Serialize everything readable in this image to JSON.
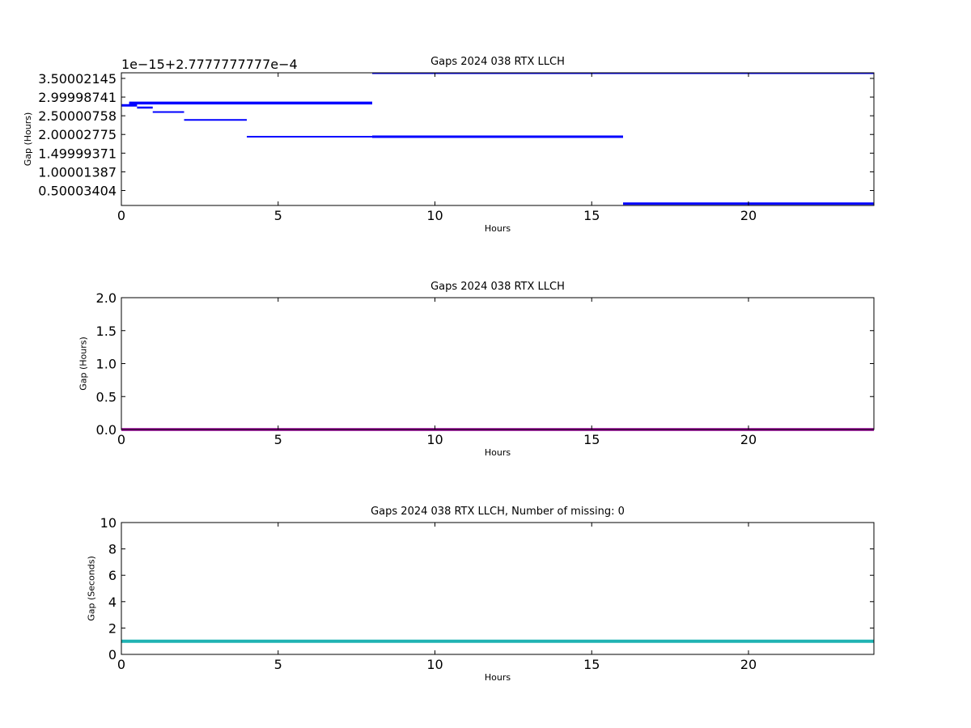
{
  "chart_data": [
    {
      "type": "line",
      "title": "Gaps 2024 038 RTX  LLCH",
      "xlabel": "Hours",
      "ylabel": "Gap (Hours)",
      "offset_text": "1e−15+2.7777777777e−4",
      "xlim": [
        0,
        24
      ],
      "ylim": [
        0.1,
        3.65
      ],
      "xticks": [
        0,
        5,
        10,
        15,
        20
      ],
      "xtick_labels": [
        "0",
        "5",
        "10",
        "15",
        "20"
      ],
      "yticks": [
        0.50003404,
        1.00001387,
        1.49999371,
        2.00002775,
        2.50000758,
        2.99998741,
        3.50002145
      ],
      "ytick_labels": [
        "0.50003404",
        "1.00001387",
        "1.49999371",
        "2.00002775",
        "2.50000758",
        "2.99998741",
        "3.50002145"
      ],
      "grid": false,
      "color": "#0000ff",
      "segments": [
        {
          "x": [
            0,
            0.5
          ],
          "y": 2.78,
          "width": 3
        },
        {
          "x": [
            0.25,
            0.5
          ],
          "y": 2.83,
          "width": 3
        },
        {
          "x": [
            0.5,
            1.0
          ],
          "y": 2.72,
          "width": 2.5
        },
        {
          "x": [
            1.0,
            2.0
          ],
          "y": 2.6,
          "width": 2
        },
        {
          "x": [
            2.0,
            4.0
          ],
          "y": 2.39,
          "width": 2
        },
        {
          "x": [
            4.0,
            8.0
          ],
          "y": 1.94,
          "width": 2
        },
        {
          "x": [
            0.25,
            8.0
          ],
          "y": 2.84,
          "width": 3.5
        },
        {
          "x": [
            8.0,
            16.0
          ],
          "y": 1.94,
          "width": 3
        },
        {
          "x": [
            8.0,
            24.0
          ],
          "y": 3.64,
          "width": 2
        },
        {
          "x": [
            16.0,
            24.0
          ],
          "y": 0.15,
          "width": 3
        }
      ]
    },
    {
      "type": "line",
      "title": "Gaps 2024 038 RTX  LLCH",
      "xlabel": "Hours",
      "ylabel": "Gap (Hours)",
      "xlim": [
        0,
        24
      ],
      "ylim": [
        0,
        2.0
      ],
      "xticks": [
        0,
        5,
        10,
        15,
        20
      ],
      "xtick_labels": [
        "0",
        "5",
        "10",
        "15",
        "20"
      ],
      "yticks": [
        0,
        0.5,
        1.0,
        1.5,
        2.0
      ],
      "ytick_labels": [
        "0.0",
        "0.5",
        "1.0",
        "1.5",
        "2.0"
      ],
      "grid": false,
      "color": "#990099",
      "segments": [
        {
          "x": [
            0,
            24
          ],
          "y": 0.0,
          "width": 3.5
        }
      ]
    },
    {
      "type": "line",
      "title": "Gaps 2024 038 RTX  LLCH, Number of missing: 0",
      "xlabel": "Hours",
      "ylabel": "Gap (Seconds)",
      "xlim": [
        0,
        24
      ],
      "ylim": [
        0,
        10
      ],
      "xticks": [
        0,
        5,
        10,
        15,
        20
      ],
      "xtick_labels": [
        "0",
        "5",
        "10",
        "15",
        "20"
      ],
      "yticks": [
        0,
        2,
        4,
        6,
        8,
        10
      ],
      "ytick_labels": [
        "0",
        "2",
        "4",
        "6",
        "8",
        "10"
      ],
      "grid": false,
      "color": "#1fb3b3",
      "segments": [
        {
          "x": [
            0,
            24
          ],
          "y": 1.0,
          "width": 4
        }
      ]
    }
  ]
}
